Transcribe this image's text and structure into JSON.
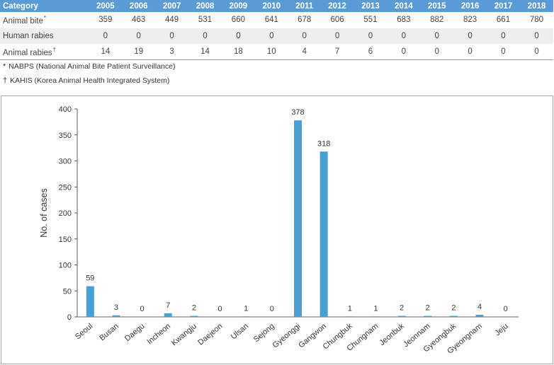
{
  "table": {
    "header_label": "Category",
    "years": [
      "2005",
      "2006",
      "2007",
      "2008",
      "2009",
      "2010",
      "2011",
      "2012",
      "2013",
      "2014",
      "2015",
      "2016",
      "2017",
      "2018"
    ],
    "rows": [
      {
        "label": "Animal bite",
        "mark": "*",
        "values": [
          "359",
          "463",
          "449",
          "531",
          "660",
          "641",
          "678",
          "606",
          "551",
          "683",
          "882",
          "823",
          "661",
          "780"
        ]
      },
      {
        "label": "Human rabies",
        "mark": "",
        "values": [
          "0",
          "0",
          "0",
          "0",
          "0",
          "0",
          "0",
          "0",
          "0",
          "0",
          "0",
          "0",
          "0",
          "0"
        ]
      },
      {
        "label": "Animal rabies",
        "mark": "†",
        "values": [
          "14",
          "19",
          "3",
          "14",
          "18",
          "10",
          "4",
          "7",
          "6",
          "0",
          "0",
          "0",
          "0",
          "0"
        ]
      }
    ]
  },
  "footnotes": [
    {
      "symbol": "*",
      "text": "NABPS (National Animal Bite Patient Surveillance)"
    },
    {
      "symbol": "†",
      "text": "KAHIS (Korea Animal Health Integrated System)"
    }
  ],
  "chart_data": {
    "type": "bar",
    "categories": [
      "Seoul",
      "Busan",
      "Daegu",
      "Incheon",
      "Kwangju",
      "Daejeon",
      "Ulsan",
      "Sejong",
      "Gyeonggi",
      "Gangwon",
      "Chungbuk",
      "Chungnam",
      "Jeonbuk",
      "Jeonnam",
      "Gyeongbuk",
      "Gyeongnam",
      "Jeju"
    ],
    "values": [
      59,
      3,
      0,
      7,
      2,
      0,
      1,
      0,
      378,
      318,
      1,
      1,
      2,
      2,
      2,
      4,
      0
    ],
    "ylabel": "No. of cases",
    "xlabel": "",
    "ylim": [
      0,
      400
    ],
    "yticks": [
      0,
      50,
      100,
      150,
      200,
      250,
      300,
      350,
      400
    ],
    "bar_color": "#4a9fd5",
    "grid": false,
    "data_labels": true
  }
}
